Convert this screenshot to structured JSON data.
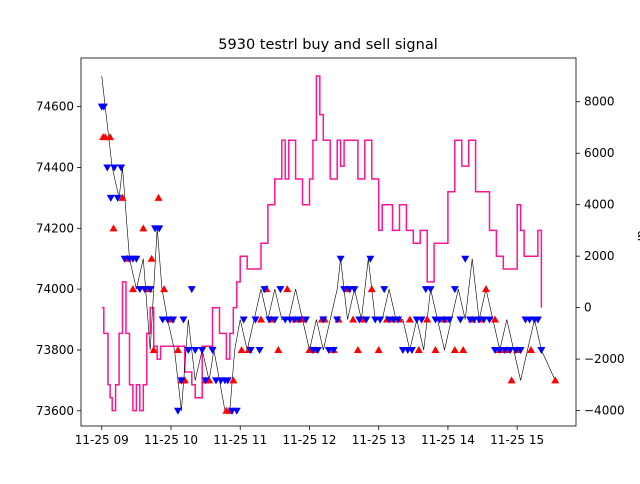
{
  "chart_data": {
    "type": "line",
    "title": "5930 testrl buy and sell signal",
    "x_axis": {
      "ticks": [
        "11-25 09",
        "11-25 10",
        "11-25 11",
        "11-25 12",
        "11-25 13",
        "11-25 14",
        "11-25 15"
      ],
      "tick_values": [
        9,
        10,
        11,
        12,
        13,
        14,
        15
      ],
      "range": [
        8.7,
        15.85
      ],
      "unit": "hour of 11-25"
    },
    "y_left": {
      "label": "",
      "range": [
        73550,
        74760
      ],
      "ticks": [
        73600,
        73800,
        74000,
        74200,
        74400,
        74600
      ]
    },
    "y_right": {
      "label": "",
      "label_visible_fragment": "al",
      "range": [
        -4600,
        9700
      ],
      "ticks": [
        -4000,
        -2000,
        0,
        2000,
        4000,
        6000,
        8000
      ]
    },
    "colors": {
      "price": "#000000",
      "signal": "#ff1493",
      "buy": "#ff0000",
      "sell": "#0000ff"
    },
    "price": {
      "x": [
        9.0,
        9.05,
        9.15,
        9.25,
        9.3,
        9.4,
        9.5,
        9.6,
        9.7,
        9.8,
        9.87,
        9.95,
        10.05,
        10.15,
        10.25,
        10.35,
        10.45,
        10.55,
        10.62,
        10.7,
        10.78,
        10.85,
        10.92,
        11.0,
        11.1,
        11.2,
        11.3,
        11.4,
        11.5,
        11.6,
        11.7,
        11.8,
        11.9,
        12.0,
        12.1,
        12.2,
        12.3,
        12.4,
        12.45,
        12.55,
        12.65,
        12.75,
        12.85,
        12.95,
        13.05,
        13.15,
        13.25,
        13.35,
        13.45,
        13.55,
        13.65,
        13.75,
        13.85,
        13.95,
        14.05,
        14.15,
        14.25,
        14.35,
        14.45,
        14.55,
        14.65,
        14.75,
        14.85,
        14.95,
        15.05,
        15.15,
        15.25,
        15.35,
        15.55
      ],
      "y": [
        74700,
        74600,
        74400,
        74300,
        74400,
        74100,
        74000,
        74100,
        73800,
        74200,
        74000,
        73900,
        73800,
        73600,
        73900,
        73700,
        73800,
        73700,
        73800,
        73700,
        73600,
        73600,
        73800,
        73900,
        73800,
        73900,
        74000,
        73900,
        74000,
        73900,
        73900,
        74000,
        73900,
        73800,
        73900,
        73800,
        73900,
        74000,
        74100,
        73900,
        74000,
        73900,
        74100,
        73900,
        73900,
        74000,
        73900,
        73900,
        73800,
        73900,
        73800,
        74000,
        73900,
        73800,
        73900,
        74000,
        73900,
        74100,
        73900,
        74000,
        73900,
        73800,
        73900,
        73800,
        73700,
        73800,
        73900,
        73800,
        73700
      ]
    },
    "signal": {
      "x": [
        9.0,
        9.03,
        9.06,
        9.09,
        9.12,
        9.15,
        9.2,
        9.25,
        9.3,
        9.35,
        9.4,
        9.45,
        9.5,
        9.55,
        9.6,
        9.65,
        9.7,
        9.75,
        9.8,
        9.85,
        9.9,
        9.95,
        10.0,
        10.1,
        10.2,
        10.3,
        10.35,
        10.4,
        10.45,
        10.5,
        10.6,
        10.7,
        10.8,
        10.85,
        10.9,
        10.95,
        11.0,
        11.1,
        11.2,
        11.3,
        11.4,
        11.5,
        11.6,
        11.65,
        11.7,
        11.8,
        11.9,
        12.0,
        12.05,
        12.1,
        12.15,
        12.2,
        12.3,
        12.4,
        12.45,
        12.5,
        12.6,
        12.7,
        12.8,
        12.9,
        13.0,
        13.05,
        13.1,
        13.2,
        13.3,
        13.4,
        13.5,
        13.55,
        13.6,
        13.7,
        13.8,
        13.9,
        14.0,
        14.05,
        14.1,
        14.2,
        14.3,
        14.4,
        14.5,
        14.6,
        14.7,
        14.8,
        14.9,
        15.0,
        15.05,
        15.1,
        15.2,
        15.3,
        15.35
      ],
      "y": [
        0,
        -1000,
        -1000,
        -3000,
        -3500,
        -4000,
        -3000,
        -1000,
        1000,
        -1000,
        -3000,
        -4000,
        -3000,
        -4000,
        -3000,
        -1000,
        0,
        -1500,
        -2000,
        -1500,
        -1500,
        -1500,
        -1500,
        -1500,
        -2500,
        -3000,
        -3500,
        -3500,
        -1500,
        -1500,
        0,
        -1000,
        -2000,
        -1000,
        0,
        1000,
        2000,
        1500,
        1500,
        2500,
        4000,
        5000,
        6500,
        5000,
        6500,
        5000,
        4000,
        5000,
        6500,
        9000,
        7500,
        6500,
        5000,
        6500,
        5500,
        6500,
        6500,
        5000,
        6500,
        5000,
        3000,
        4000,
        4000,
        3000,
        4000,
        3000,
        2500,
        2500,
        3000,
        1000,
        2500,
        2500,
        4500,
        4500,
        6500,
        5500,
        6500,
        4500,
        4500,
        3000,
        2000,
        1500,
        1500,
        4000,
        3000,
        2000,
        2000,
        3000,
        0
      ]
    },
    "buy_signals": {
      "x": [
        9.02,
        9.05,
        9.12,
        9.17,
        9.3,
        9.37,
        9.45,
        9.6,
        9.68,
        9.72,
        9.75,
        9.82,
        9.9,
        10.0,
        10.1,
        10.15,
        10.2,
        10.5,
        10.55,
        10.8,
        10.85,
        10.9,
        11.02,
        11.12,
        11.3,
        11.38,
        11.45,
        11.55,
        11.68,
        11.8,
        11.9,
        12.0,
        12.08,
        12.18,
        12.22,
        12.35,
        12.42,
        12.55,
        12.63,
        12.7,
        12.78,
        12.9,
        13.0,
        13.12,
        13.2,
        13.3,
        13.45,
        13.58,
        13.7,
        13.82,
        13.95,
        14.1,
        14.22,
        14.35,
        14.48,
        14.55,
        14.68,
        14.75,
        14.85,
        14.92,
        15.0,
        15.2,
        15.55
      ],
      "y": [
        74500,
        74500,
        74500,
        74200,
        74300,
        74100,
        74000,
        74200,
        74000,
        74100,
        73800,
        74300,
        74000,
        73900,
        73800,
        73700,
        73700,
        73700,
        73700,
        73600,
        73600,
        73700,
        73800,
        73800,
        73900,
        74000,
        73900,
        73800,
        74000,
        73900,
        73900,
        73800,
        73800,
        73900,
        73900,
        73800,
        73900,
        74000,
        73900,
        73800,
        73900,
        74000,
        73800,
        73900,
        73900,
        73900,
        73900,
        73800,
        73900,
        73800,
        73900,
        73800,
        73800,
        73900,
        73900,
        74000,
        73900,
        73800,
        73800,
        73700,
        73800,
        73800,
        73700
      ]
    },
    "sell_signals": {
      "x": [
        9.0,
        9.03,
        9.08,
        9.13,
        9.18,
        9.23,
        9.28,
        9.33,
        9.4,
        9.45,
        9.5,
        9.55,
        9.62,
        9.7,
        9.77,
        9.83,
        9.88,
        9.95,
        10.03,
        10.1,
        10.15,
        10.18,
        10.25,
        10.3,
        10.35,
        10.45,
        10.5,
        10.6,
        10.65,
        10.72,
        10.78,
        10.82,
        10.88,
        10.95,
        11.05,
        11.15,
        11.22,
        11.28,
        11.35,
        11.42,
        11.5,
        11.58,
        11.65,
        11.72,
        11.78,
        11.85,
        11.95,
        12.05,
        12.12,
        12.2,
        12.28,
        12.35,
        12.4,
        12.45,
        12.5,
        12.58,
        12.65,
        12.72,
        12.82,
        12.88,
        12.95,
        13.02,
        13.08,
        13.15,
        13.22,
        13.28,
        13.35,
        13.42,
        13.48,
        13.55,
        13.62,
        13.68,
        13.75,
        13.82,
        13.88,
        13.95,
        14.02,
        14.1,
        14.18,
        14.25,
        14.32,
        14.38,
        14.45,
        14.52,
        14.6,
        14.68,
        14.75,
        14.82,
        14.9,
        14.98,
        15.05,
        15.12,
        15.18,
        15.25,
        15.3,
        15.35
      ],
      "y": [
        74600,
        74600,
        74400,
        74300,
        74400,
        74300,
        74400,
        74100,
        74100,
        74100,
        74100,
        74000,
        74000,
        74000,
        74200,
        74200,
        73900,
        73900,
        73900,
        73600,
        73700,
        73900,
        73800,
        74000,
        73800,
        73800,
        73700,
        73800,
        73700,
        73700,
        73700,
        73700,
        73600,
        73600,
        73900,
        73800,
        73900,
        73800,
        74000,
        73900,
        73900,
        74000,
        73900,
        73900,
        73900,
        73900,
        73900,
        73800,
        73800,
        73900,
        73800,
        73800,
        73900,
        74100,
        74000,
        74000,
        74000,
        73900,
        73900,
        74100,
        73900,
        73900,
        74000,
        73900,
        73900,
        73900,
        73800,
        73800,
        73800,
        73900,
        73900,
        74000,
        74000,
        73900,
        73900,
        73900,
        73900,
        74000,
        73900,
        74100,
        73900,
        73900,
        73900,
        73900,
        73900,
        73800,
        73800,
        73800,
        73800,
        73800,
        73800,
        73900,
        73900,
        73900,
        73900,
        73800
      ]
    }
  }
}
